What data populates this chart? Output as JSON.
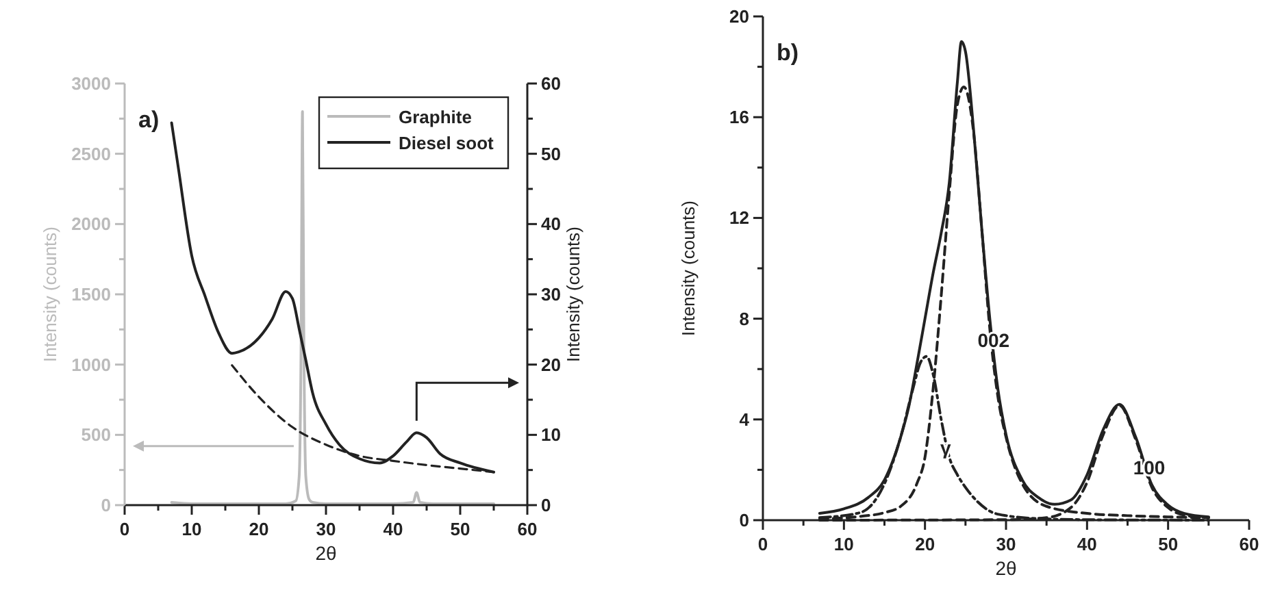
{
  "chart_data": [
    {
      "type": "line",
      "title": "a)",
      "xlabel": "2θ",
      "ylabel": "Intensity (counts)",
      "y2label": "Intensity (counts)",
      "xlim": [
        0,
        60
      ],
      "xticks": [
        0,
        {
          "value": 5,
          "label": null
        },
        10,
        {
          "value": 15,
          "label": null
        },
        20,
        {
          "value": 25,
          "label": null
        },
        30,
        {
          "value": 35,
          "label": null
        },
        40,
        {
          "value": 45,
          "label": null
        },
        50,
        {
          "value": 55,
          "label": null
        },
        60
      ],
      "ylim": [
        0,
        3000
      ],
      "yticks": [
        0,
        {
          "value": 250,
          "label": null
        },
        500,
        {
          "value": 750,
          "label": null
        },
        1000,
        {
          "value": 1250,
          "label": null
        },
        1500,
        {
          "value": 1750,
          "label": null
        },
        2000,
        {
          "value": 2250,
          "label": null
        },
        2500,
        {
          "value": 2750,
          "label": null
        },
        3000
      ],
      "y2lim": [
        0,
        60
      ],
      "y2ticks": [
        0,
        {
          "value": 5,
          "label": null
        },
        10,
        {
          "value": 15,
          "label": null
        },
        20,
        {
          "value": 25,
          "label": null
        },
        30,
        {
          "value": 35,
          "label": null
        },
        40,
        {
          "value": 45,
          "label": null
        },
        50,
        {
          "value": 55,
          "label": null
        },
        60
      ],
      "legend": "top right",
      "series": [
        {
          "name": "Graphite",
          "color": "#bbbbbb",
          "line_style": "solid",
          "x": [
            7,
            10,
            15,
            20,
            24,
            25.5,
            26,
            26.3,
            26.5,
            26.7,
            27,
            27.5,
            28,
            30,
            35,
            40,
            43,
            43.5,
            44,
            46,
            50,
            55
          ],
          "values": [
            20,
            10,
            10,
            10,
            10,
            30,
            200,
            1200,
            2800,
            1200,
            200,
            40,
            20,
            10,
            10,
            10,
            20,
            90,
            20,
            10,
            10,
            10
          ]
        },
        {
          "name": "Diesel soot",
          "color": "#222222",
          "axis": "y2",
          "line_style": "solid",
          "x": [
            7,
            8,
            10,
            12,
            14,
            16,
            17,
            20,
            22,
            24,
            25,
            26,
            27,
            28,
            30,
            32,
            35,
            38,
            40,
            42,
            43.5,
            45,
            47,
            50,
            55
          ],
          "values": [
            54.4,
            48,
            35.5,
            29.7,
            24.5,
            21.6,
            21.8,
            23.8,
            26.5,
            30.4,
            29.4,
            25.1,
            20.6,
            16,
            11.5,
            8.6,
            6.6,
            6,
            7,
            9,
            10.3,
            9.6,
            7.3,
            6,
            4.7
          ]
        },
        {
          "color": "#222222",
          "axis": "y2",
          "line_style": "dashed",
          "x": [
            16,
            20,
            25,
            30,
            35,
            40,
            45,
            50,
            55
          ],
          "values": [
            19.9,
            15.4,
            11.1,
            8.6,
            7,
            6.3,
            5.7,
            5.2,
            4.7
          ]
        }
      ]
    },
    {
      "type": "line",
      "title": "b)",
      "xlabel": "2θ",
      "ylabel": "Intensity (counts)",
      "xlim": [
        0,
        60
      ],
      "xticks": [
        0,
        {
          "value": 5,
          "label": null
        },
        10,
        {
          "value": 15,
          "label": null
        },
        20,
        {
          "value": 25,
          "label": null
        },
        30,
        {
          "value": 35,
          "label": null
        },
        40,
        {
          "value": 45,
          "label": null
        },
        50,
        {
          "value": 55,
          "label": null
        },
        60
      ],
      "ylim": [
        0,
        20
      ],
      "yticks": [
        0,
        {
          "value": 2,
          "label": null
        },
        4,
        {
          "value": 6,
          "label": null
        },
        8,
        {
          "value": 10,
          "label": null
        },
        12,
        {
          "value": 14,
          "label": null
        },
        16,
        {
          "value": 18,
          "label": null
        },
        20
      ],
      "legend": false,
      "series": [
        {
          "color": "#222222",
          "line_style": "solid",
          "x": [
            7,
            10,
            13,
            15,
            17,
            18,
            19,
            20,
            21,
            22,
            23,
            24,
            24.5,
            25,
            26,
            27,
            28,
            29,
            30,
            32,
            34,
            36,
            38,
            40,
            42,
            44,
            46,
            48,
            50,
            52,
            55
          ],
          "values": [
            0.27,
            0.45,
            0.9,
            1.6,
            3.3,
            4.5,
            6.2,
            8,
            9.8,
            11.4,
            13.4,
            17.4,
            19,
            18.6,
            15.5,
            11.6,
            8,
            5.2,
            3.4,
            1.6,
            0.9,
            0.63,
            0.8,
            1.8,
            3.6,
            4.6,
            3.3,
            1.4,
            0.6,
            0.27,
            0.13
          ]
        },
        {
          "name": "002",
          "color": "#222222",
          "line_style": "dashed",
          "x": [
            7,
            12,
            15,
            17,
            19,
            20,
            21,
            22,
            23,
            24,
            24.8,
            26,
            27,
            28,
            29,
            30,
            32,
            35,
            40,
            45,
            50,
            55
          ],
          "values": [
            0.05,
            0.15,
            0.3,
            0.55,
            1.45,
            2.5,
            5.2,
            8.9,
            13,
            16.5,
            17.2,
            15.4,
            11.6,
            7.6,
            4.9,
            3.3,
            1.45,
            0.55,
            0.27,
            0.18,
            0.13,
            0.1
          ]
        },
        {
          "name": "γ",
          "color": "#222222",
          "line_style": "dashdot",
          "x": [
            7,
            12,
            15,
            17,
            18.5,
            19.5,
            20.2,
            21,
            22,
            23,
            24,
            25,
            26,
            28,
            30,
            35,
            40,
            55
          ],
          "values": [
            0.1,
            0.3,
            1.45,
            3.3,
            5.2,
            6.3,
            6.5,
            5.8,
            4,
            2.5,
            1.8,
            1.3,
            0.9,
            0.36,
            0.18,
            0.05,
            0.02,
            0
          ]
        },
        {
          "name": "100",
          "color": "#222222",
          "line_style": "dashed",
          "x": [
            7,
            30,
            35,
            38,
            40,
            42,
            44,
            46,
            48,
            50,
            52,
            55
          ],
          "values": [
            0,
            0.02,
            0.1,
            0.5,
            1.5,
            3.4,
            4.55,
            3.2,
            1.3,
            0.5,
            0.2,
            0.1
          ]
        }
      ]
    }
  ]
}
